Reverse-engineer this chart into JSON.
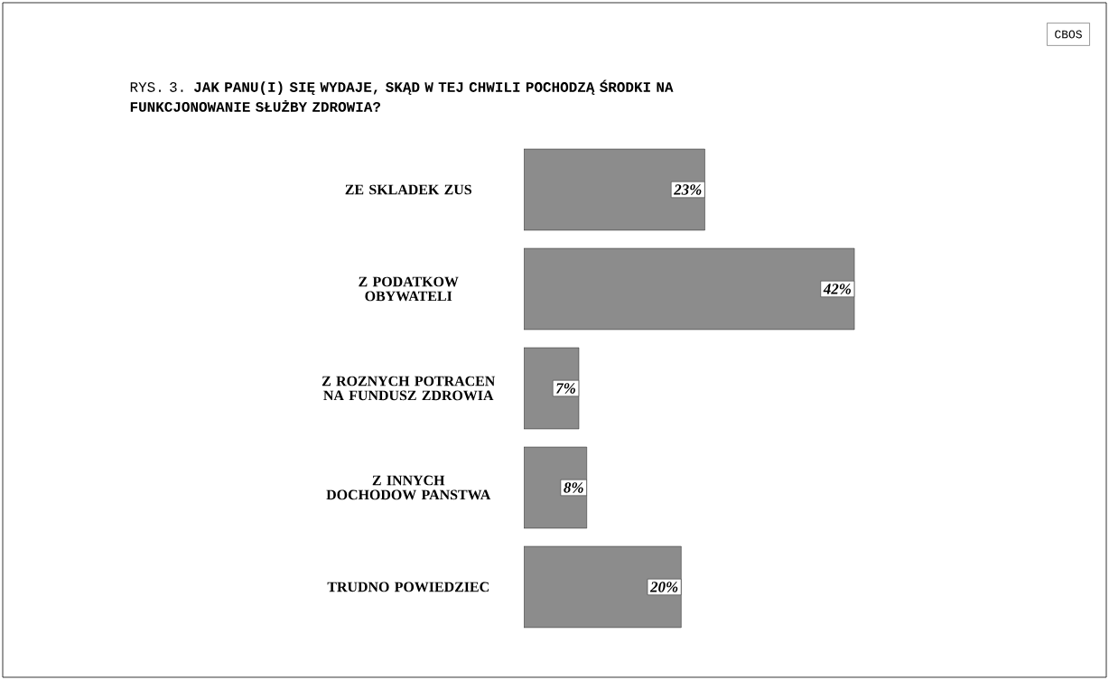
{
  "chart_data": {
    "type": "bar",
    "orientation": "horizontal",
    "title": "RYS. 3. **JAK PANU(I) SIĘ WYDAJE, SKĄD W TEJ CHWILI POCHODZĄ ŚRODKI NA FUNKCJONOWANIE SŁUŻBY ZDROWIA?**",
    "categories": [
      "ZE SKLADEK ZUS",
      "Z PODATKOW OBYWATELI",
      "Z ROZNYCH POTRACEN NA FUNDUSZ ZDROWIA",
      "Z INNYCH DOCHODOW PANSTWA",
      "TRUDNO POWIEDZIEC"
    ],
    "values": [
      23,
      42,
      7,
      8,
      20
    ],
    "value_labels": [
      "23%",
      "42%",
      "7%",
      "8%",
      "20%"
    ],
    "color": "#8c8c8c",
    "annotations": [
      "CBOS"
    ]
  }
}
